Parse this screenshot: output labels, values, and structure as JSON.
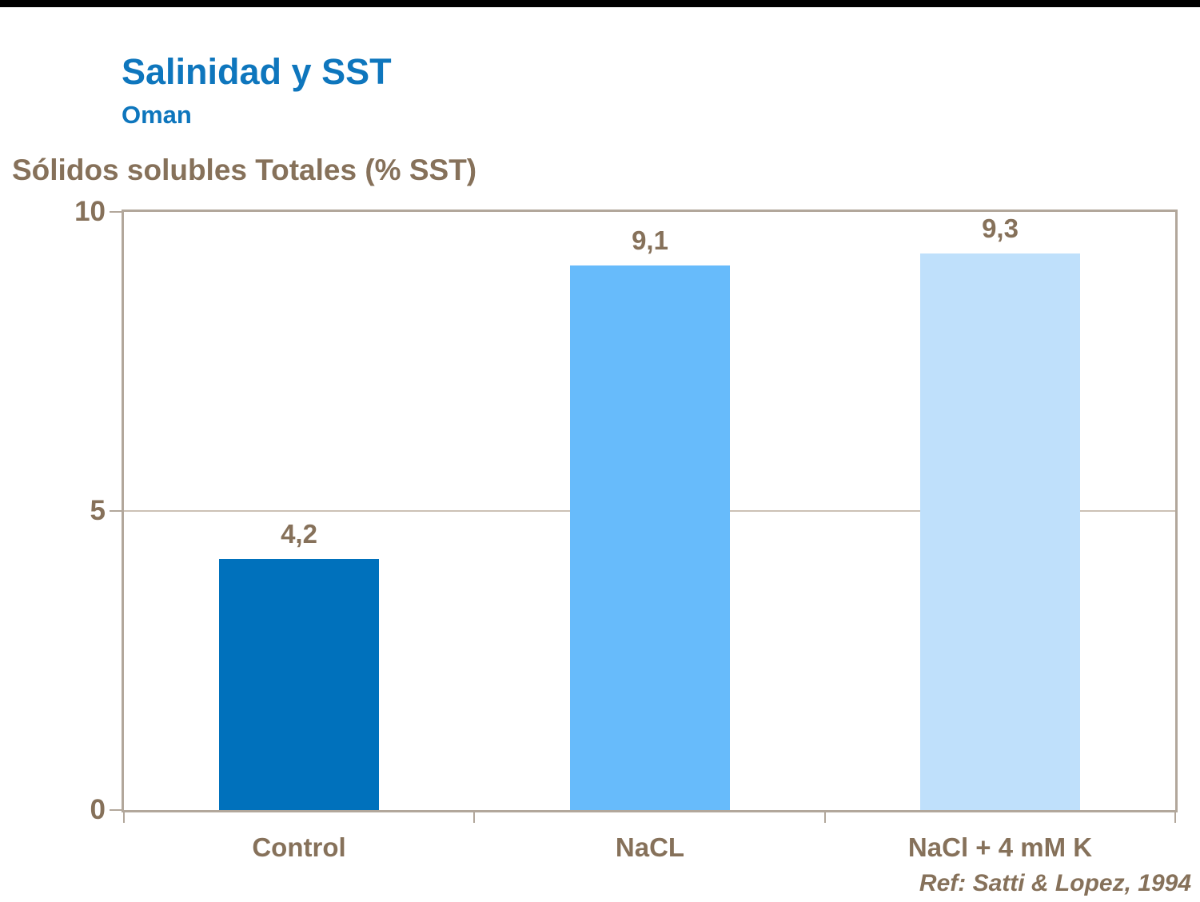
{
  "header": {
    "title": "Salinidad y SST",
    "subtitle": "Oman",
    "title_color": "#0E76BD"
  },
  "chart_data": {
    "type": "bar",
    "title": "Salinidad y SST",
    "subtitle": "Oman",
    "ylabel": "Sólidos solubles Totales (% SST)",
    "xlabel": "",
    "categories": [
      "Control",
      "NaCL",
      "NaCl + 4 mM K"
    ],
    "values": [
      4.2,
      9.1,
      9.3
    ],
    "value_labels": [
      "4,2",
      "9,1",
      "9,3"
    ],
    "ylim": [
      0,
      10
    ],
    "yticks": [
      0,
      5,
      10
    ],
    "ytick_labels": [
      "0",
      "5",
      "10"
    ],
    "gridlines": [
      5
    ],
    "grid": "horizontal",
    "legend_position": "none",
    "bar_colors": [
      "#0071BC",
      "#67BBFB",
      "#BFE0FB"
    ],
    "label_color": "#86715A",
    "axis_frame_color": "#B2A79B"
  },
  "footer": {
    "reference": "Ref: Satti & Lopez, 1994"
  }
}
